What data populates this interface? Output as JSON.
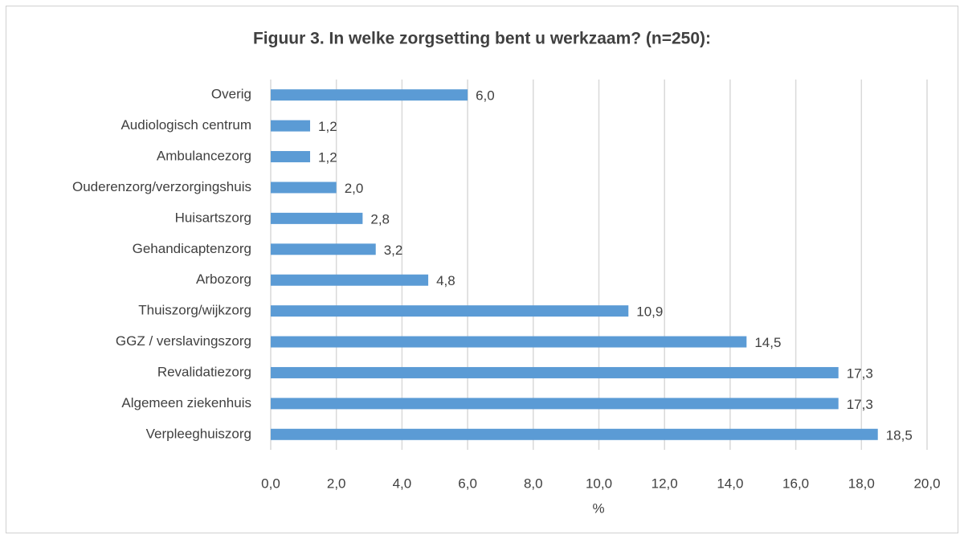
{
  "chart_data": {
    "type": "bar",
    "orientation": "horizontal",
    "title": "Figuur 3. In welke zorgsetting bent u werkzaam? (n=250):",
    "x_label": "%",
    "categories": [
      "Overig",
      "Audiologisch centrum",
      "Ambulancezorg",
      "Ouderenzorg/verzorgingshuis",
      "Huisartszorg",
      "Gehandicaptenzorg",
      "Arbozorg",
      "Thuiszorg/wijkzorg",
      "GGZ / verslavingszorg",
      "Revalidatiezorg",
      "Algemeen ziekenhuis",
      "Verpleeghuiszorg"
    ],
    "values": [
      6.0,
      1.2,
      1.2,
      2.0,
      2.8,
      3.2,
      4.8,
      10.9,
      14.5,
      17.3,
      17.3,
      18.5
    ],
    "value_labels": [
      "6,0",
      "1,2",
      "1,2",
      "2,0",
      "2,8",
      "3,2",
      "4,8",
      "10,9",
      "14,5",
      "17,3",
      "17,3",
      "18,5"
    ],
    "color": "#5b9bd5",
    "xlim": [
      0,
      20
    ],
    "xticks": [
      {
        "value": 0,
        "label": "0,0"
      },
      {
        "value": 2,
        "label": "2,0"
      },
      {
        "value": 4,
        "label": "4,0"
      },
      {
        "value": 6,
        "label": "6,0"
      },
      {
        "value": 8,
        "label": "8,0"
      },
      {
        "value": 10,
        "label": "10,0"
      },
      {
        "value": 12,
        "label": "12,0"
      },
      {
        "value": 14,
        "label": "14,0"
      },
      {
        "value": 16,
        "label": "16,0"
      },
      {
        "value": 18,
        "label": "18,0"
      },
      {
        "value": 20,
        "label": "20,0"
      }
    ],
    "grid": true
  }
}
